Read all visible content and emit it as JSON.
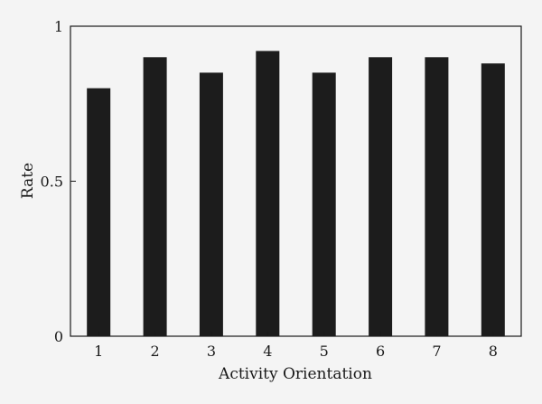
{
  "chart_data": {
    "type": "bar",
    "title": "",
    "xlabel": "Activity Orientation",
    "ylabel": "Rate",
    "categories": [
      "1",
      "2",
      "3",
      "4",
      "5",
      "6",
      "7",
      "8"
    ],
    "values": [
      0.8,
      0.9,
      0.85,
      0.92,
      0.85,
      0.9,
      0.9,
      0.88
    ],
    "ylim": [
      0,
      1
    ],
    "yticks": [
      0,
      0.5,
      1
    ],
    "ytick_labels": [
      "0",
      "0.5",
      "1"
    ],
    "grid": false,
    "legend": "none",
    "bar_color": "#1c1c1c",
    "background_color": "#f4f4f4"
  }
}
